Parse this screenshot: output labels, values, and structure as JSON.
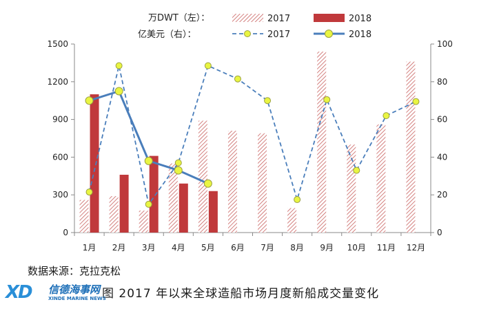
{
  "chart_data": {
    "type": "bar",
    "categories": [
      "1月",
      "2月",
      "3月",
      "4月",
      "5月",
      "6月",
      "7月",
      "8月",
      "9月",
      "10月",
      "11月",
      "12月"
    ],
    "left_axis": {
      "ylim": [
        0,
        1500
      ],
      "ticks": [
        "0",
        "300",
        "600",
        "900",
        "1200",
        "1500"
      ]
    },
    "right_axis": {
      "ylim": [
        0,
        100
      ],
      "ticks": [
        "0",
        "20",
        "40",
        "60",
        "80",
        "100"
      ]
    },
    "legend": {
      "row1_label": "万DWT（左）：",
      "row2_label": "亿美元（右）：",
      "placement": "top"
    },
    "series": [
      {
        "name": "2017",
        "kind": "bar",
        "axis": "left",
        "style": "hatched",
        "color": "#c9615f",
        "values": [
          260,
          290,
          175,
          550,
          890,
          810,
          790,
          195,
          1440,
          700,
          860,
          1360
        ]
      },
      {
        "name": "2018",
        "kind": "bar",
        "axis": "left",
        "style": "solid",
        "color": "#c0393b",
        "values": [
          1100,
          460,
          610,
          390,
          330,
          null,
          null,
          null,
          null,
          null,
          null,
          null
        ]
      },
      {
        "name": "2017",
        "kind": "line",
        "axis": "right",
        "style": "dashed",
        "color": "#4a7ebb",
        "marker_color": "#e9f542",
        "values": [
          21.5,
          88.5,
          15,
          37,
          88.5,
          81.5,
          70,
          17.5,
          70.5,
          33,
          62,
          69.5
        ]
      },
      {
        "name": "2018",
        "kind": "line",
        "axis": "right",
        "style": "solid",
        "color": "#4a7ebb",
        "marker_color": "#e9f542",
        "values": [
          70,
          75,
          38,
          33,
          26,
          null,
          null,
          null,
          null,
          null,
          null,
          null
        ]
      }
    ]
  },
  "source": "数据来源：克拉克松",
  "caption": "图 2017 年以来全球造船市场月度新船成交量变化",
  "logo": {
    "mark": "XD",
    "name_cn": "信德海事网",
    "name_en": "XINDE MARINE NEWS"
  }
}
